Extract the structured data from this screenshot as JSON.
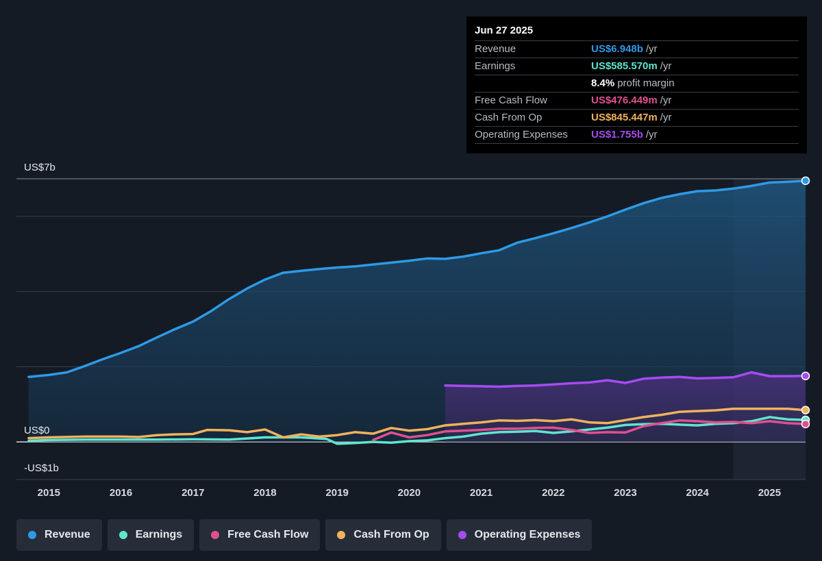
{
  "tooltip": {
    "date": "Jun 27 2025",
    "rows": [
      {
        "label": "Revenue",
        "value": "US$6.948b",
        "unit": "/yr",
        "color": "#2e9ae6"
      },
      {
        "label": "Earnings",
        "value": "US$585.570m",
        "unit": "/yr",
        "color": "#5ee6cf"
      },
      {
        "label": "",
        "value": "8.4%",
        "unit": "profit margin",
        "color": "#ffffff"
      },
      {
        "label": "Free Cash Flow",
        "value": "US$476.449m",
        "unit": "/yr",
        "color": "#e0508f"
      },
      {
        "label": "Cash From Op",
        "value": "US$845.447m",
        "unit": "/yr",
        "color": "#f1b25c"
      },
      {
        "label": "Operating Expenses",
        "value": "US$1.755b",
        "unit": "/yr",
        "color": "#a54cf0"
      }
    ]
  },
  "chart_data": {
    "type": "line",
    "title": "",
    "xlabel": "",
    "ylabel": "",
    "xlim": [
      2014.55,
      2025.5
    ],
    "ylim": [
      -1,
      7
    ],
    "y_axis_labels": [
      {
        "value": 7,
        "label": "US$7b"
      },
      {
        "value": 0,
        "label": "US$0"
      },
      {
        "value": -1,
        "label": "-US$1b"
      }
    ],
    "gridlines": [
      7,
      6,
      4,
      2
    ],
    "x_ticks": [
      "2015",
      "2016",
      "2017",
      "2018",
      "2019",
      "2020",
      "2021",
      "2022",
      "2023",
      "2024",
      "2025"
    ],
    "forecast_start": 2024.5,
    "series": [
      {
        "name": "Revenue",
        "color": "#2e9ae6",
        "fill": true,
        "x": [
          2014.72,
          2015.0,
          2015.25,
          2015.5,
          2015.75,
          2016.0,
          2016.25,
          2016.5,
          2016.75,
          2017.0,
          2017.25,
          2017.5,
          2017.75,
          2018.0,
          2018.25,
          2018.5,
          2018.75,
          2019.0,
          2019.25,
          2019.5,
          2019.75,
          2020.0,
          2020.25,
          2020.5,
          2020.75,
          2021.0,
          2021.25,
          2021.5,
          2021.75,
          2022.0,
          2022.25,
          2022.5,
          2022.75,
          2023.0,
          2023.25,
          2023.5,
          2023.75,
          2024.0,
          2024.25,
          2024.5,
          2024.75,
          2025.0,
          2025.25,
          2025.5
        ],
        "y": [
          1.73,
          1.78,
          1.85,
          2.02,
          2.2,
          2.37,
          2.55,
          2.78,
          3.0,
          3.2,
          3.48,
          3.8,
          4.08,
          4.32,
          4.5,
          4.55,
          4.6,
          4.64,
          4.67,
          4.72,
          4.77,
          4.82,
          4.88,
          4.87,
          4.93,
          5.02,
          5.1,
          5.3,
          5.42,
          5.55,
          5.69,
          5.84,
          6.0,
          6.18,
          6.35,
          6.49,
          6.59,
          6.67,
          6.69,
          6.74,
          6.81,
          6.9,
          6.92,
          6.948
        ]
      },
      {
        "name": "Earnings",
        "color": "#5ee6cf",
        "fill": false,
        "x": [
          2014.72,
          2015.0,
          2015.5,
          2016.0,
          2016.5,
          2017.0,
          2017.5,
          2018.0,
          2018.5,
          2018.85,
          2019.0,
          2019.25,
          2019.5,
          2019.75,
          2020.0,
          2020.25,
          2020.5,
          2020.75,
          2021.0,
          2021.25,
          2021.5,
          2021.75,
          2022.0,
          2022.25,
          2022.5,
          2022.75,
          2023.0,
          2023.25,
          2023.5,
          2023.75,
          2024.0,
          2024.25,
          2024.5,
          2024.75,
          2025.0,
          2025.25,
          2025.5
        ],
        "y": [
          0.03,
          0.05,
          0.06,
          0.06,
          0.06,
          0.07,
          0.06,
          0.12,
          0.12,
          0.08,
          -0.05,
          -0.03,
          0.0,
          -0.02,
          0.02,
          0.04,
          0.1,
          0.14,
          0.22,
          0.26,
          0.27,
          0.29,
          0.24,
          0.28,
          0.33,
          0.38,
          0.45,
          0.47,
          0.48,
          0.46,
          0.44,
          0.48,
          0.5,
          0.55,
          0.66,
          0.6,
          0.586
        ]
      },
      {
        "name": "Free Cash Flow",
        "color": "#e0508f",
        "fill": false,
        "x": [
          2019.5,
          2019.75,
          2020.0,
          2020.25,
          2020.5,
          2020.75,
          2021.0,
          2021.25,
          2021.5,
          2021.75,
          2022.0,
          2022.25,
          2022.5,
          2022.75,
          2023.0,
          2023.25,
          2023.5,
          2023.75,
          2024.0,
          2024.25,
          2024.5,
          2024.75,
          2025.0,
          2025.25,
          2025.5
        ],
        "y": [
          0.05,
          0.25,
          0.12,
          0.18,
          0.28,
          0.3,
          0.32,
          0.35,
          0.35,
          0.37,
          0.38,
          0.32,
          0.24,
          0.26,
          0.25,
          0.42,
          0.5,
          0.57,
          0.55,
          0.52,
          0.53,
          0.5,
          0.55,
          0.5,
          0.476
        ]
      },
      {
        "name": "Cash From Op",
        "color": "#f1b25c",
        "fill": false,
        "x": [
          2014.72,
          2015.0,
          2015.5,
          2016.0,
          2016.25,
          2016.5,
          2016.75,
          2017.0,
          2017.2,
          2017.5,
          2017.75,
          2018.0,
          2018.25,
          2018.5,
          2018.75,
          2019.0,
          2019.25,
          2019.5,
          2019.75,
          2020.0,
          2020.25,
          2020.5,
          2020.75,
          2021.0,
          2021.25,
          2021.5,
          2021.75,
          2022.0,
          2022.25,
          2022.5,
          2022.75,
          2023.0,
          2023.25,
          2023.5,
          2023.75,
          2024.0,
          2024.25,
          2024.5,
          2024.75,
          2025.0,
          2025.25,
          2025.5
        ],
        "y": [
          0.1,
          0.12,
          0.14,
          0.14,
          0.13,
          0.18,
          0.2,
          0.21,
          0.32,
          0.31,
          0.26,
          0.33,
          0.12,
          0.2,
          0.14,
          0.18,
          0.26,
          0.22,
          0.37,
          0.3,
          0.34,
          0.44,
          0.48,
          0.52,
          0.57,
          0.56,
          0.58,
          0.55,
          0.6,
          0.52,
          0.5,
          0.58,
          0.66,
          0.72,
          0.8,
          0.82,
          0.84,
          0.88,
          0.88,
          0.88,
          0.88,
          0.845
        ]
      },
      {
        "name": "Operating Expenses",
        "color": "#a54cf0",
        "fill": true,
        "x": [
          2020.5,
          2020.75,
          2021.0,
          2021.25,
          2021.5,
          2021.75,
          2022.0,
          2022.25,
          2022.5,
          2022.75,
          2023.0,
          2023.25,
          2023.5,
          2023.75,
          2024.0,
          2024.25,
          2024.5,
          2024.75,
          2025.0,
          2025.25,
          2025.5
        ],
        "y": [
          1.5,
          1.49,
          1.48,
          1.47,
          1.49,
          1.5,
          1.53,
          1.56,
          1.58,
          1.64,
          1.57,
          1.68,
          1.71,
          1.73,
          1.69,
          1.7,
          1.72,
          1.85,
          1.75,
          1.75,
          1.755
        ]
      }
    ]
  },
  "legend": [
    {
      "label": "Revenue",
      "color": "#2e9ae6"
    },
    {
      "label": "Earnings",
      "color": "#5ee6cf"
    },
    {
      "label": "Free Cash Flow",
      "color": "#e0508f"
    },
    {
      "label": "Cash From Op",
      "color": "#f1b25c"
    },
    {
      "label": "Operating Expenses",
      "color": "#a54cf0"
    }
  ]
}
